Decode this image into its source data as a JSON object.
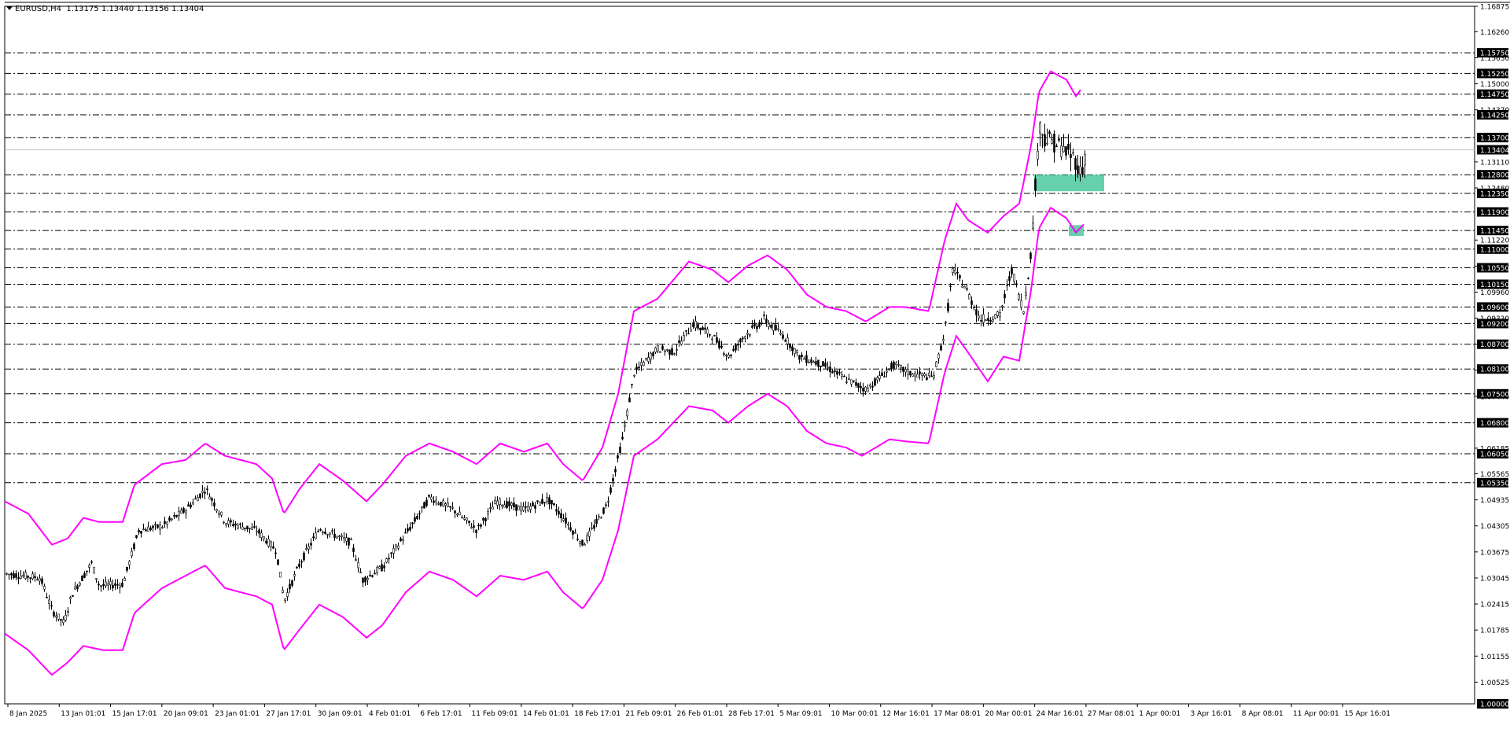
{
  "header": {
    "symbol": "EURUSD,H4",
    "ohlc": "1.13175 1.13440 1.13156 1.13404"
  },
  "colors": {
    "background": "#ffffff",
    "candle": "#000000",
    "band": "#ff00ff",
    "zone": "#4cc9a0",
    "level_line": "#000000",
    "label_box": "#000000"
  },
  "chart_data": {
    "type": "candlestick",
    "symbol": "EURUSD",
    "timeframe": "H4",
    "ylim": [
      1.0,
      1.16875
    ],
    "grid": false,
    "x_ticks": [
      "8 Jan 2025",
      "13 Jan 01:01",
      "15 Jan 17:01",
      "20 Jan 09:01",
      "23 Jan 01:01",
      "27 Jan 17:01",
      "30 Jan 09:01",
      "4 Feb 01:01",
      "6 Feb 17:01",
      "11 Feb 09:01",
      "14 Feb 01:01",
      "18 Feb 17:01",
      "21 Feb 09:01",
      "26 Feb 01:01",
      "28 Feb 17:01",
      "5 Mar 09:01",
      "10 Mar 00:01",
      "12 Mar 16:01",
      "17 Mar 08:01",
      "20 Mar 00:01",
      "24 Mar 16:01",
      "27 Mar 08:01",
      "1 Apr 00:01",
      "3 Apr 16:01",
      "8 Apr 08:01",
      "11 Apr 00:01",
      "15 Apr 16:01"
    ],
    "y_ticks": [
      "1.16875",
      "1.16260",
      "1.15630",
      "1.15000",
      "1.14370",
      "1.13110",
      "1.12480",
      "1.11220",
      "1.10590",
      "1.09960",
      "1.09330",
      "1.08700",
      "1.08070",
      "1.07440",
      "1.06185",
      "1.05565",
      "1.04935",
      "1.04305",
      "1.03675",
      "1.03045",
      "1.02415",
      "1.01785",
      "1.01155",
      "1.00525"
    ],
    "highlighted_levels": [
      "1.15750",
      "1.15250",
      "1.14750",
      "1.14250",
      "1.13700",
      "1.12800",
      "1.12350",
      "1.11900",
      "1.11450",
      "1.11000",
      "1.10550",
      "1.10150",
      "1.09600",
      "1.09200",
      "1.08700",
      "1.08100",
      "1.07500",
      "1.06800",
      "1.06050",
      "1.05350",
      "1.00000"
    ],
    "current_price": "1.13404",
    "anchors": [
      [
        0,
        1.0315
      ],
      [
        45,
        1.0305
      ],
      [
        60,
        1.0225
      ],
      [
        75,
        1.0195
      ],
      [
        85,
        1.0265
      ],
      [
        110,
        1.034
      ],
      [
        120,
        1.0285
      ],
      [
        150,
        1.029
      ],
      [
        170,
        1.042
      ],
      [
        200,
        1.043
      ],
      [
        230,
        1.047
      ],
      [
        255,
        1.052
      ],
      [
        280,
        1.044
      ],
      [
        320,
        1.042
      ],
      [
        345,
        1.037
      ],
      [
        355,
        1.025
      ],
      [
        375,
        1.034
      ],
      [
        400,
        1.0425
      ],
      [
        440,
        1.039
      ],
      [
        455,
        1.03
      ],
      [
        480,
        1.033
      ],
      [
        520,
        1.044
      ],
      [
        540,
        1.05
      ],
      [
        570,
        1.047
      ],
      [
        600,
        1.042
      ],
      [
        625,
        1.049
      ],
      [
        660,
        1.047
      ],
      [
        690,
        1.0495
      ],
      [
        710,
        1.045
      ],
      [
        735,
        1.0385
      ],
      [
        765,
        1.048
      ],
      [
        785,
        1.064
      ],
      [
        800,
        1.08
      ],
      [
        830,
        1.086
      ],
      [
        850,
        1.085
      ],
      [
        875,
        1.092
      ],
      [
        900,
        1.089
      ],
      [
        920,
        1.084
      ],
      [
        940,
        1.089
      ],
      [
        965,
        1.093
      ],
      [
        990,
        1.089
      ],
      [
        1010,
        1.084
      ],
      [
        1040,
        1.082
      ],
      [
        1065,
        1.079
      ],
      [
        1095,
        1.076
      ],
      [
        1130,
        1.082
      ],
      [
        1150,
        1.08
      ],
      [
        1180,
        1.079
      ],
      [
        1195,
        1.09
      ],
      [
        1205,
        1.105
      ],
      [
        1220,
        1.101
      ],
      [
        1240,
        1.093
      ],
      [
        1265,
        1.094
      ],
      [
        1280,
        1.105
      ],
      [
        1295,
        1.095
      ],
      [
        1305,
        1.11
      ],
      [
        1315,
        1.14
      ],
      [
        1322,
        1.137
      ],
      [
        1340,
        1.135
      ],
      [
        1360,
        1.132
      ],
      [
        1368,
        1.128
      ],
      [
        1375,
        1.134
      ]
    ],
    "upper_band": [
      [
        0,
        1.049
      ],
      [
        30,
        1.046
      ],
      [
        60,
        1.0385
      ],
      [
        80,
        1.04
      ],
      [
        100,
        1.045
      ],
      [
        120,
        1.044
      ],
      [
        150,
        1.044
      ],
      [
        165,
        1.053
      ],
      [
        200,
        1.058
      ],
      [
        230,
        1.059
      ],
      [
        255,
        1.063
      ],
      [
        280,
        1.06
      ],
      [
        320,
        1.058
      ],
      [
        340,
        1.0545
      ],
      [
        355,
        1.046
      ],
      [
        375,
        1.052
      ],
      [
        400,
        1.058
      ],
      [
        430,
        1.054
      ],
      [
        460,
        1.049
      ],
      [
        480,
        1.053
      ],
      [
        510,
        1.06
      ],
      [
        540,
        1.063
      ],
      [
        570,
        1.061
      ],
      [
        600,
        1.058
      ],
      [
        630,
        1.063
      ],
      [
        660,
        1.061
      ],
      [
        690,
        1.063
      ],
      [
        710,
        1.058
      ],
      [
        735,
        1.054
      ],
      [
        760,
        1.062
      ],
      [
        780,
        1.075
      ],
      [
        800,
        1.095
      ],
      [
        830,
        1.098
      ],
      [
        870,
        1.107
      ],
      [
        900,
        1.105
      ],
      [
        920,
        1.102
      ],
      [
        945,
        1.106
      ],
      [
        970,
        1.1085
      ],
      [
        995,
        1.105
      ],
      [
        1020,
        1.099
      ],
      [
        1045,
        1.096
      ],
      [
        1070,
        1.095
      ],
      [
        1095,
        1.0925
      ],
      [
        1125,
        1.096
      ],
      [
        1145,
        1.096
      ],
      [
        1175,
        1.095
      ],
      [
        1195,
        1.112
      ],
      [
        1210,
        1.121
      ],
      [
        1225,
        1.117
      ],
      [
        1250,
        1.114
      ],
      [
        1270,
        1.118
      ],
      [
        1290,
        1.121
      ],
      [
        1305,
        1.135
      ],
      [
        1315,
        1.148
      ],
      [
        1330,
        1.153
      ],
      [
        1350,
        1.151
      ],
      [
        1362,
        1.147
      ],
      [
        1368,
        1.1485
      ]
    ],
    "lower_band": [
      [
        0,
        1.017
      ],
      [
        30,
        1.013
      ],
      [
        60,
        1.007
      ],
      [
        80,
        1.01
      ],
      [
        100,
        1.014
      ],
      [
        125,
        1.013
      ],
      [
        150,
        1.013
      ],
      [
        165,
        1.022
      ],
      [
        200,
        1.028
      ],
      [
        230,
        1.031
      ],
      [
        255,
        1.0335
      ],
      [
        280,
        1.028
      ],
      [
        320,
        1.026
      ],
      [
        340,
        1.024
      ],
      [
        355,
        1.013
      ],
      [
        375,
        1.018
      ],
      [
        400,
        1.024
      ],
      [
        430,
        1.021
      ],
      [
        460,
        1.016
      ],
      [
        480,
        1.019
      ],
      [
        510,
        1.027
      ],
      [
        540,
        1.032
      ],
      [
        570,
        1.03
      ],
      [
        600,
        1.026
      ],
      [
        630,
        1.031
      ],
      [
        660,
        1.03
      ],
      [
        690,
        1.032
      ],
      [
        710,
        1.027
      ],
      [
        735,
        1.023
      ],
      [
        760,
        1.03
      ],
      [
        780,
        1.042
      ],
      [
        800,
        1.06
      ],
      [
        830,
        1.064
      ],
      [
        870,
        1.072
      ],
      [
        900,
        1.071
      ],
      [
        920,
        1.068
      ],
      [
        945,
        1.072
      ],
      [
        970,
        1.075
      ],
      [
        995,
        1.072
      ],
      [
        1020,
        1.066
      ],
      [
        1045,
        1.063
      ],
      [
        1070,
        1.062
      ],
      [
        1090,
        1.06
      ],
      [
        1125,
        1.064
      ],
      [
        1145,
        1.0635
      ],
      [
        1175,
        1.063
      ],
      [
        1195,
        1.08
      ],
      [
        1210,
        1.089
      ],
      [
        1225,
        1.085
      ],
      [
        1250,
        1.078
      ],
      [
        1270,
        1.084
      ],
      [
        1290,
        1.083
      ],
      [
        1305,
        1.1
      ],
      [
        1315,
        1.115
      ],
      [
        1330,
        1.12
      ],
      [
        1350,
        1.1175
      ],
      [
        1362,
        1.114
      ],
      [
        1372,
        1.116
      ]
    ],
    "zones": [
      {
        "x0": 1309,
        "x1": 1398,
        "y0": 1.124,
        "y1": 1.128
      },
      {
        "x0": 1353,
        "x1": 1372,
        "y0": 1.1132,
        "y1": 1.1158
      }
    ]
  }
}
